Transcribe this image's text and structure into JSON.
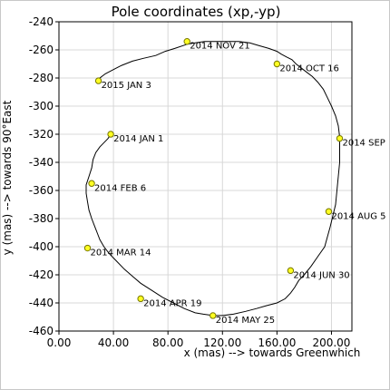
{
  "chart_data": {
    "type": "line",
    "title": "Pole coordinates (xp,-yp)",
    "xlabel": "x (mas) --> towards Greenwhich",
    "ylabel": "y (mas) --> towards 90°East",
    "xlim": [
      0,
      215
    ],
    "ylim": [
      -460,
      -240
    ],
    "xticks": [
      0,
      40,
      80,
      120,
      160,
      200
    ],
    "xtick_labels": [
      "0.00",
      "40.00",
      "80.00",
      "120.00",
      "160.00",
      "200.00"
    ],
    "yticks": [
      -460,
      -440,
      -420,
      -400,
      -380,
      -360,
      -340,
      -320,
      -300,
      -280,
      -260,
      -240
    ],
    "ytick_labels": [
      "-460",
      "-440",
      "-420",
      "-400",
      "-380",
      "-360",
      "-340",
      "-320",
      "-300",
      "-280",
      "-260",
      "-240"
    ],
    "grid": true,
    "series": [
      {
        "x": [
          38,
          36,
          33,
          30,
          27,
          25,
          24,
          22,
          20,
          20,
          21,
          22,
          24,
          26,
          28,
          30,
          33,
          37,
          42,
          48,
          54,
          60,
          68,
          76,
          84,
          92,
          100,
          106,
          113,
          120,
          128,
          137,
          145,
          152,
          160,
          166,
          170,
          173,
          176,
          180,
          185,
          190,
          195,
          197,
          199,
          201,
          203,
          204,
          205,
          206,
          206,
          206,
          205,
          203,
          200,
          197,
          194,
          190,
          186,
          182,
          178,
          174,
          171,
          167,
          163,
          160,
          154,
          147,
          140,
          132,
          123,
          115,
          107,
          100,
          94,
          85,
          78,
          71,
          62,
          54,
          46,
          40,
          34,
          30,
          29
        ],
        "y": [
          -320,
          -323,
          -326,
          -329,
          -333,
          -338,
          -344,
          -350,
          -356,
          -362,
          -368,
          -374,
          -380,
          -385,
          -390,
          -395,
          -400,
          -405,
          -410,
          -416,
          -421,
          -426,
          -431,
          -436,
          -440,
          -444,
          -447,
          -448,
          -449,
          -449,
          -448,
          -446,
          -444,
          -442,
          -440,
          -437,
          -433,
          -429,
          -424,
          -420,
          -414,
          -407,
          -400,
          -393,
          -386,
          -378,
          -370,
          -360,
          -350,
          -340,
          -330,
          -322,
          -314,
          -307,
          -300,
          -294,
          -288,
          -283,
          -279,
          -276,
          -273,
          -270,
          -267,
          -265,
          -263,
          -261,
          -259,
          -257,
          -255,
          -254,
          -254,
          -254,
          -254,
          -255,
          -256,
          -259,
          -261,
          -264,
          -266,
          -268,
          -271,
          -274,
          -277,
          -280,
          -282
        ]
      }
    ],
    "points": [
      {
        "label": "2014 JAN 1",
        "x": 38,
        "y": -320
      },
      {
        "label": "2014 FEB 6",
        "x": 24,
        "y": -355
      },
      {
        "label": "2014 MAR 14",
        "x": 21,
        "y": -401
      },
      {
        "label": "2014 APR 19",
        "x": 60,
        "y": -437
      },
      {
        "label": "2014 MAY 25",
        "x": 113,
        "y": -449
      },
      {
        "label": "2014 JUN 30",
        "x": 170,
        "y": -417
      },
      {
        "label": "2014 AUG 5",
        "x": 198,
        "y": -375
      },
      {
        "label": "2014 SEP",
        "x": 206,
        "y": -323
      },
      {
        "label": "2014 OCT 16",
        "x": 160,
        "y": -270
      },
      {
        "label": "2014 NOV 21",
        "x": 94,
        "y": -254
      },
      {
        "label": "2015 JAN 3",
        "x": 29,
        "y": -282
      }
    ]
  }
}
